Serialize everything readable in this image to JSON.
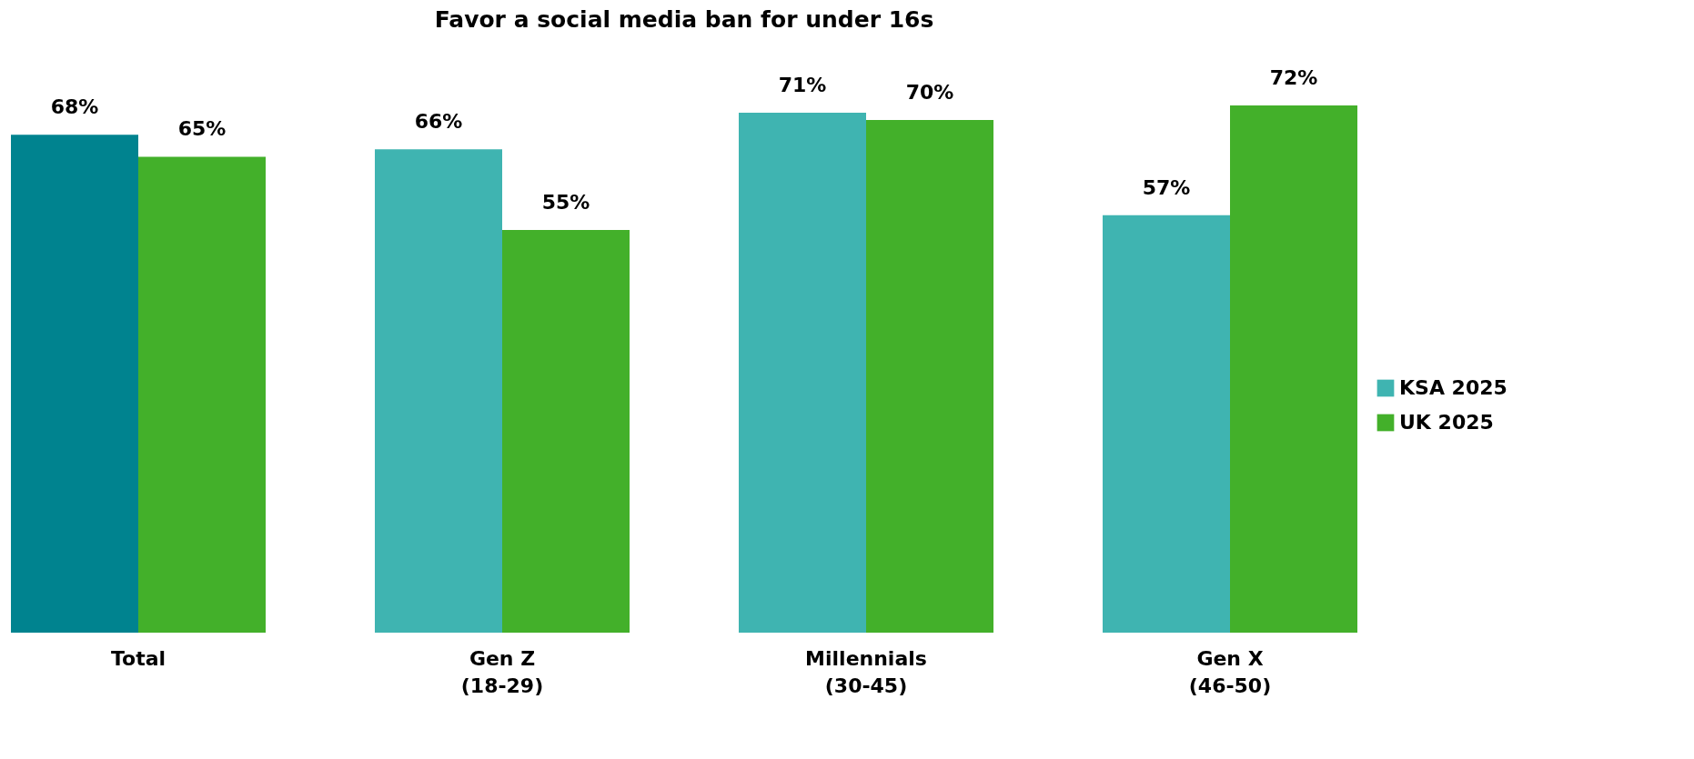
{
  "chart_data": {
    "type": "bar",
    "title": "Favor a social media ban for under 16s",
    "categories": [
      "Total",
      "Gen Z\n(18-29)",
      "Millennials\n(30-45)",
      "Gen X\n(46-50)"
    ],
    "series": [
      {
        "name": "KSA 2025",
        "color": "#3fb4b1",
        "colors": [
          "#00838f",
          "#3fb4b1",
          "#3fb4b1",
          "#3fb4b1"
        ],
        "values": [
          68,
          66,
          71,
          57
        ],
        "value_labels": [
          "68%",
          "66%",
          "71%",
          "57%"
        ]
      },
      {
        "name": "UK 2025",
        "color": "#43b02a",
        "values": [
          65,
          55,
          70,
          72
        ],
        "value_labels": [
          "65%",
          "55%",
          "70%",
          "72%"
        ]
      }
    ],
    "legend": "right"
  }
}
